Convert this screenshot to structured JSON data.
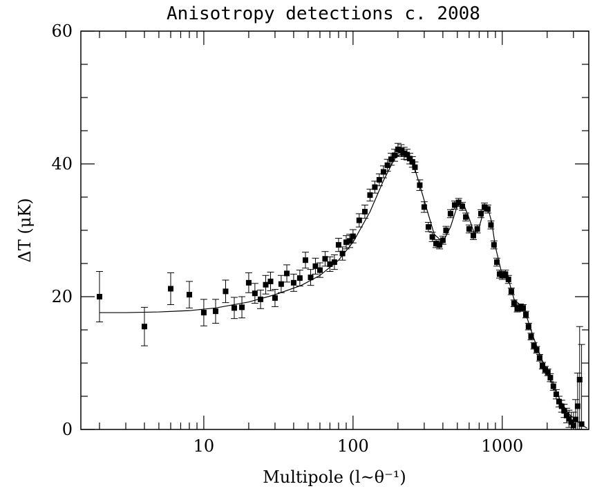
{
  "chart_data": {
    "type": "scatter",
    "title": "Anisotropy detections c. 2008",
    "xlabel": "Multipole (l~θ⁻¹)",
    "ylabel": "ΔT (μK)",
    "x_scale": "log",
    "xlim": [
      1.5,
      3800
    ],
    "ylim": [
      0,
      60
    ],
    "x_ticklabels": [
      "10",
      "100",
      "1000"
    ],
    "y_ticklabels": [
      "0",
      "20",
      "40",
      "60"
    ],
    "grid": false,
    "legend": "none",
    "colors": {
      "points": "#000000",
      "curve": "#000000"
    },
    "series": [
      {
        "kind": "points",
        "x": [
          2,
          4,
          6,
          8,
          10,
          12,
          14,
          16,
          18,
          20,
          22,
          24,
          26,
          28,
          30,
          33,
          36,
          40,
          44,
          48,
          52,
          56,
          60,
          65,
          70,
          75,
          80,
          85,
          90,
          95,
          100,
          110,
          120,
          130,
          140,
          150,
          160,
          170,
          180,
          190,
          200,
          210,
          220,
          230,
          240,
          250,
          260,
          280,
          300,
          320,
          340,
          360,
          380,
          400,
          420,
          450,
          480,
          510,
          540,
          570,
          600,
          640,
          680,
          720,
          760,
          800,
          840,
          880,
          920,
          960,
          1000,
          1050,
          1100,
          1150,
          1200,
          1260,
          1320,
          1380,
          1440,
          1500,
          1560,
          1630,
          1700,
          1780,
          1860,
          1940,
          2020,
          2100,
          2200,
          2300,
          2400,
          2500,
          2600,
          2700,
          2800,
          2900,
          3000,
          3100,
          3200,
          3300,
          3400
        ],
        "y": [
          20.0,
          15.5,
          21.2,
          20.3,
          17.6,
          17.8,
          20.8,
          18.3,
          18.4,
          22.1,
          20.5,
          19.6,
          21.8,
          22.3,
          19.8,
          21.9,
          23.5,
          22.1,
          22.8,
          25.5,
          22.9,
          24.6,
          24.0,
          25.7,
          24.9,
          25.2,
          27.8,
          26.5,
          28.2,
          28.4,
          29.1,
          31.5,
          32.8,
          35.3,
          36.5,
          37.6,
          38.8,
          39.8,
          40.7,
          41.3,
          42.2,
          42.0,
          41.6,
          41.4,
          40.8,
          40.3,
          39.5,
          36.8,
          33.5,
          30.5,
          29.0,
          28.0,
          27.8,
          28.5,
          30.0,
          32.5,
          33.8,
          34.2,
          33.6,
          32.0,
          30.2,
          29.2,
          30.2,
          32.5,
          33.5,
          33.2,
          30.8,
          27.8,
          25.2,
          23.4,
          23.2,
          23.4,
          22.6,
          20.8,
          19.0,
          18.2,
          18.4,
          18.3,
          17.3,
          15.5,
          14.0,
          12.6,
          12.0,
          10.8,
          9.6,
          9.0,
          8.6,
          7.8,
          6.5,
          5.3,
          4.2,
          3.5,
          2.8,
          2.1,
          1.6,
          1.1,
          0.6,
          1.5,
          3.5,
          7.5,
          0.8
        ],
        "err": [
          3.8,
          2.9,
          2.4,
          2.0,
          2.0,
          1.8,
          1.7,
          1.6,
          1.6,
          1.5,
          1.5,
          1.4,
          1.4,
          1.4,
          1.3,
          1.3,
          1.3,
          1.3,
          1.2,
          1.2,
          1.2,
          1.2,
          1.1,
          1.1,
          1.1,
          1.1,
          1.0,
          1.0,
          1.0,
          1.0,
          1.0,
          1.0,
          1.0,
          0.9,
          0.9,
          0.9,
          0.9,
          0.9,
          0.9,
          0.9,
          0.9,
          0.9,
          0.9,
          0.8,
          0.8,
          0.8,
          0.8,
          0.8,
          0.8,
          0.7,
          0.7,
          0.6,
          0.6,
          0.6,
          0.6,
          0.6,
          0.6,
          0.6,
          0.6,
          0.6,
          0.6,
          0.6,
          0.6,
          0.6,
          0.6,
          0.6,
          0.6,
          0.6,
          0.6,
          0.6,
          0.6,
          0.6,
          0.6,
          0.5,
          0.5,
          0.5,
          0.5,
          0.5,
          0.5,
          0.5,
          0.5,
          0.5,
          0.5,
          0.5,
          0.5,
          0.5,
          0.5,
          0.6,
          0.6,
          0.7,
          0.8,
          0.9,
          1.0,
          1.1,
          1.3,
          1.5,
          2.0,
          3.0,
          5.0,
          8.0,
          12.0
        ]
      },
      {
        "kind": "curve",
        "x": [
          2,
          3,
          5,
          8,
          12,
          20,
          30,
          45,
          60,
          80,
          100,
          130,
          160,
          190,
          215,
          250,
          300,
          350,
          400,
          450,
          500,
          550,
          600,
          650,
          700,
          750,
          800,
          850,
          900,
          1000,
          1100,
          1200,
          1400,
          1600,
          1800,
          2000,
          2200,
          2500,
          2800,
          3100,
          3400,
          3700
        ],
        "y": [
          17.6,
          17.6,
          17.7,
          17.9,
          18.3,
          19.2,
          20.3,
          21.7,
          23.2,
          25.5,
          28.2,
          32.8,
          37.5,
          40.8,
          41.7,
          40.5,
          34.5,
          29.4,
          28.2,
          30.5,
          33.7,
          34.0,
          31.8,
          29.5,
          30.5,
          32.8,
          33.4,
          31.2,
          27.5,
          23.2,
          22.6,
          19.6,
          18.2,
          14.2,
          11.0,
          8.8,
          6.5,
          4.0,
          2.3,
          1.5,
          0.7,
          0.2
        ]
      }
    ]
  }
}
